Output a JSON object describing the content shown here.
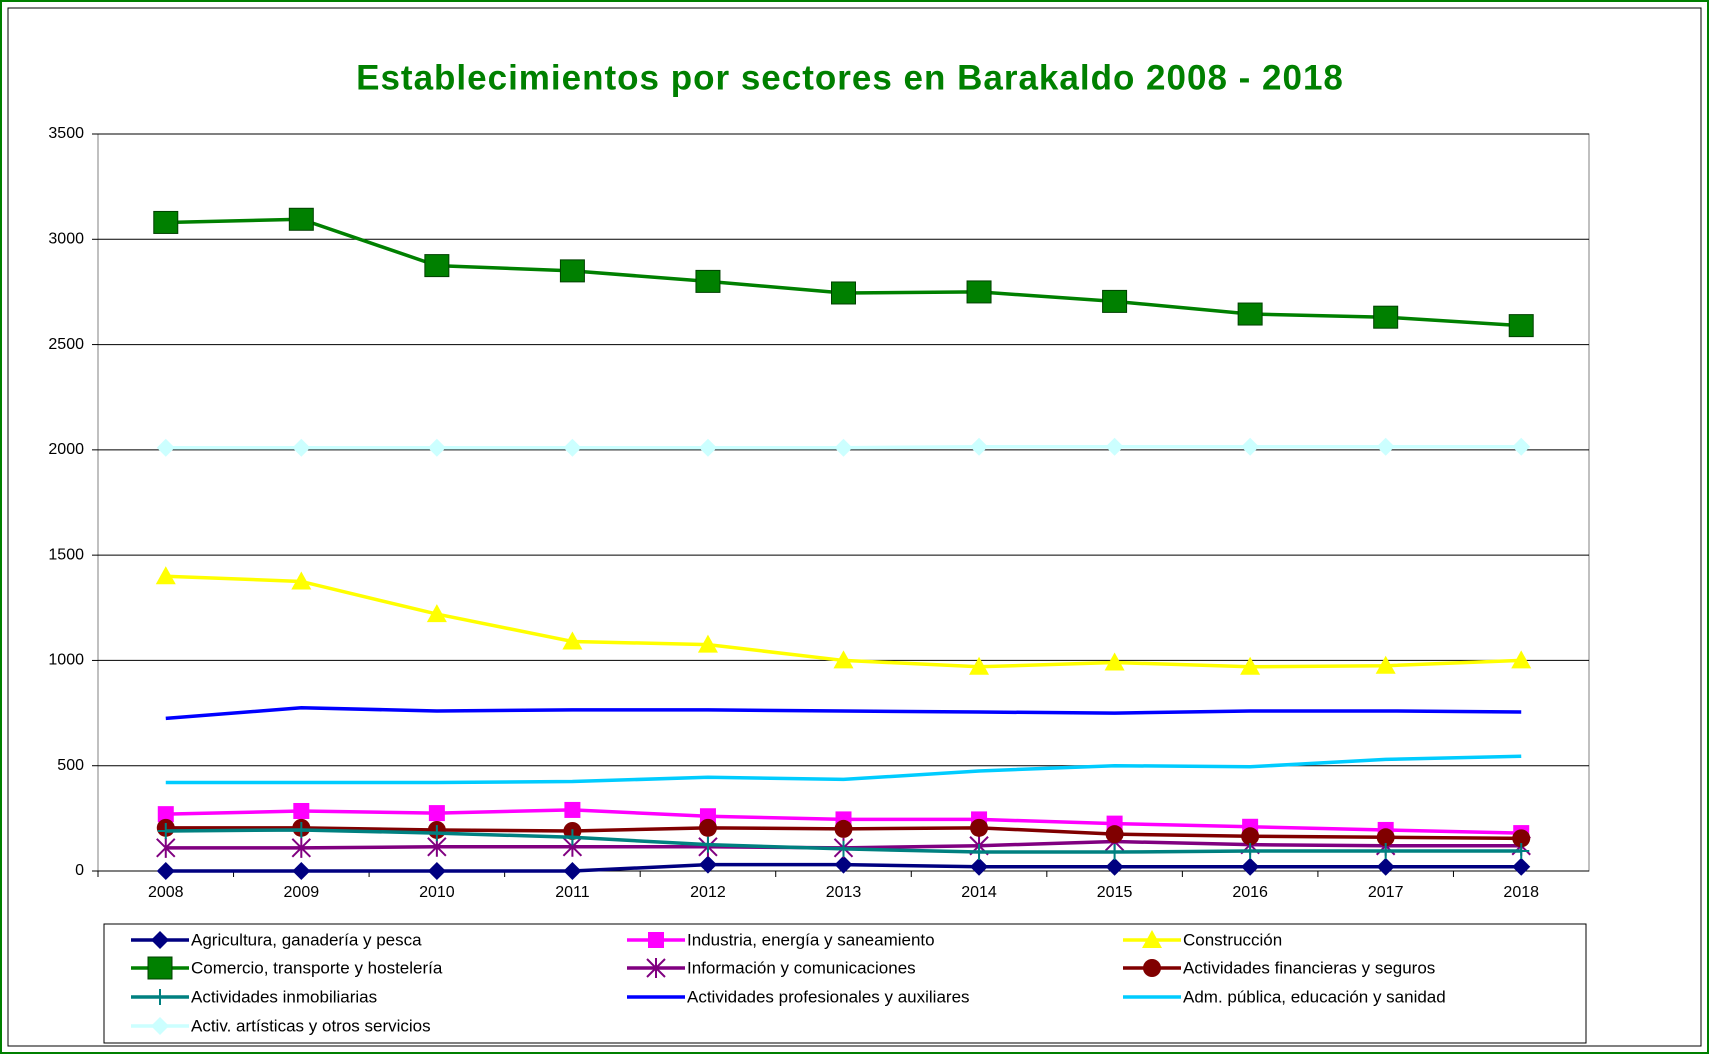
{
  "chart_data": {
    "type": "line",
    "title": "Establecimientos por sectores en Barakaldo 2008 - 2018",
    "categories": [
      "2008",
      "2009",
      "2010",
      "2011",
      "2012",
      "2013",
      "2014",
      "2015",
      "2016",
      "2017",
      "2018"
    ],
    "ylim": [
      0,
      3500
    ],
    "yticks": [
      0,
      500,
      1000,
      1500,
      2000,
      2500,
      3000,
      3500
    ],
    "grid": true,
    "legend": "bottom",
    "series": [
      {
        "name": "Agricultura, ganadería y pesca",
        "color": "#000080",
        "marker": "diamond",
        "values": [
          0,
          0,
          0,
          0,
          30,
          30,
          20,
          20,
          20,
          20,
          20
        ]
      },
      {
        "name": "Industria, energía y saneamiento",
        "color": "#ff00ff",
        "marker": "square",
        "values": [
          270,
          285,
          275,
          290,
          260,
          245,
          245,
          225,
          210,
          195,
          180
        ]
      },
      {
        "name": "Construcción",
        "color": "#ffff00",
        "marker": "triangle",
        "values": [
          1400,
          1375,
          1220,
          1090,
          1075,
          1000,
          970,
          990,
          970,
          975,
          1000
        ]
      },
      {
        "name": "Comercio, transporte y hostelería",
        "color": "#008000",
        "marker": "bigsquare",
        "values": [
          3080,
          3095,
          2875,
          2850,
          2800,
          2745,
          2750,
          2705,
          2645,
          2630,
          2590
        ]
      },
      {
        "name": "Información y comunicaciones",
        "color": "#800080",
        "marker": "star",
        "values": [
          110,
          110,
          115,
          115,
          115,
          110,
          120,
          140,
          125,
          120,
          120
        ]
      },
      {
        "name": "Actividades financieras y seguros",
        "color": "#800000",
        "marker": "circle",
        "values": [
          205,
          205,
          195,
          190,
          205,
          200,
          205,
          175,
          165,
          160,
          155
        ]
      },
      {
        "name": "Actividades inmobiliarias",
        "color": "#008080",
        "marker": "plus",
        "values": [
          190,
          195,
          180,
          160,
          125,
          105,
          90,
          90,
          95,
          95,
          95
        ]
      },
      {
        "name": "Actividades profesionales y auxiliares",
        "color": "#0000ff",
        "marker": "none",
        "values": [
          725,
          775,
          760,
          765,
          765,
          760,
          755,
          750,
          760,
          760,
          755
        ]
      },
      {
        "name": "Adm. pública, educación y sanidad",
        "color": "#00ccff",
        "marker": "none",
        "values": [
          420,
          420,
          420,
          425,
          445,
          435,
          475,
          500,
          495,
          530,
          545
        ]
      },
      {
        "name": "Activ. artísticas y otros servicios",
        "color": "#ccffff",
        "marker": "diamond",
        "values": [
          2010,
          2010,
          2010,
          2010,
          2010,
          2010,
          2015,
          2015,
          2015,
          2015,
          2015
        ]
      }
    ]
  }
}
